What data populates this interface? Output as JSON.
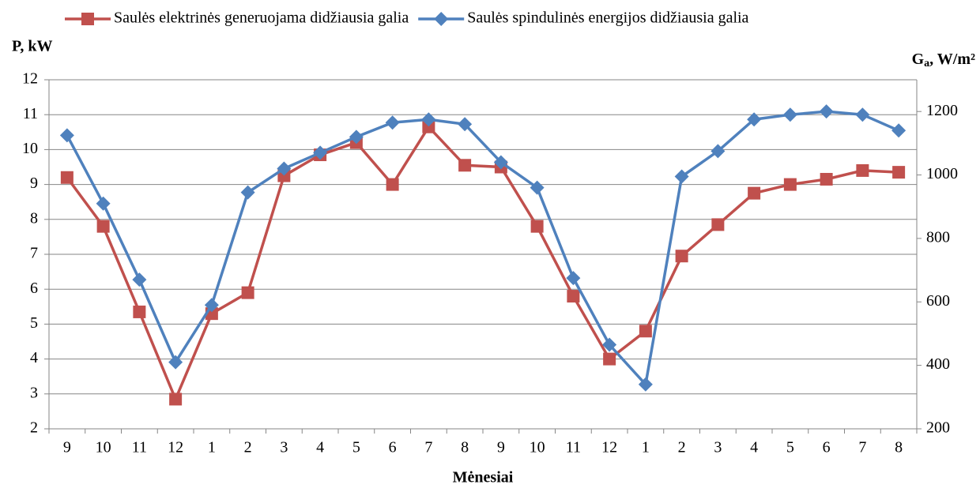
{
  "chart_data": {
    "type": "line",
    "x_label": "Mėnesiai",
    "y_label": "P, kW",
    "y2_label": {
      "base": "G",
      "sub": "a",
      "rest": ", W/m²"
    },
    "categories": [
      "9",
      "10",
      "11",
      "12",
      "1",
      "2",
      "3",
      "4",
      "5",
      "6",
      "7",
      "8",
      "9",
      "10",
      "11",
      "12",
      "1",
      "2",
      "3",
      "4",
      "5",
      "6",
      "7",
      "8"
    ],
    "series": [
      {
        "name": "Saulės elektrinės generuojama didžiausia galia",
        "color": "#c0504d",
        "marker": "square",
        "values": [
          9.2,
          7.8,
          5.35,
          2.85,
          5.3,
          5.9,
          9.25,
          9.85,
          10.2,
          9.0,
          10.65,
          9.55,
          9.5,
          7.8,
          5.8,
          4.0,
          4.8,
          6.95,
          7.85,
          8.75,
          9.0,
          9.15,
          9.4,
          9.35
        ]
      },
      {
        "name": "Saulės spindulinės energijos didžiausia galia",
        "color": "#4f81bd",
        "marker": "diamond",
        "axis": "y2",
        "values": [
          1125,
          910,
          670,
          410,
          590,
          945,
          1020,
          1070,
          1120,
          1165,
          1175,
          1160,
          1040,
          960,
          675,
          465,
          340,
          995,
          1075,
          1175,
          1190,
          1200,
          1190,
          1140
        ]
      }
    ],
    "ylim": [
      2,
      12
    ],
    "yticks": [
      2,
      3,
      4,
      5,
      6,
      7,
      8,
      9,
      10,
      11,
      12
    ],
    "y2lim": [
      200,
      1300
    ],
    "y2ticks": [
      200,
      400,
      600,
      800,
      1000,
      1200
    ],
    "grid": true,
    "legend": "top"
  }
}
